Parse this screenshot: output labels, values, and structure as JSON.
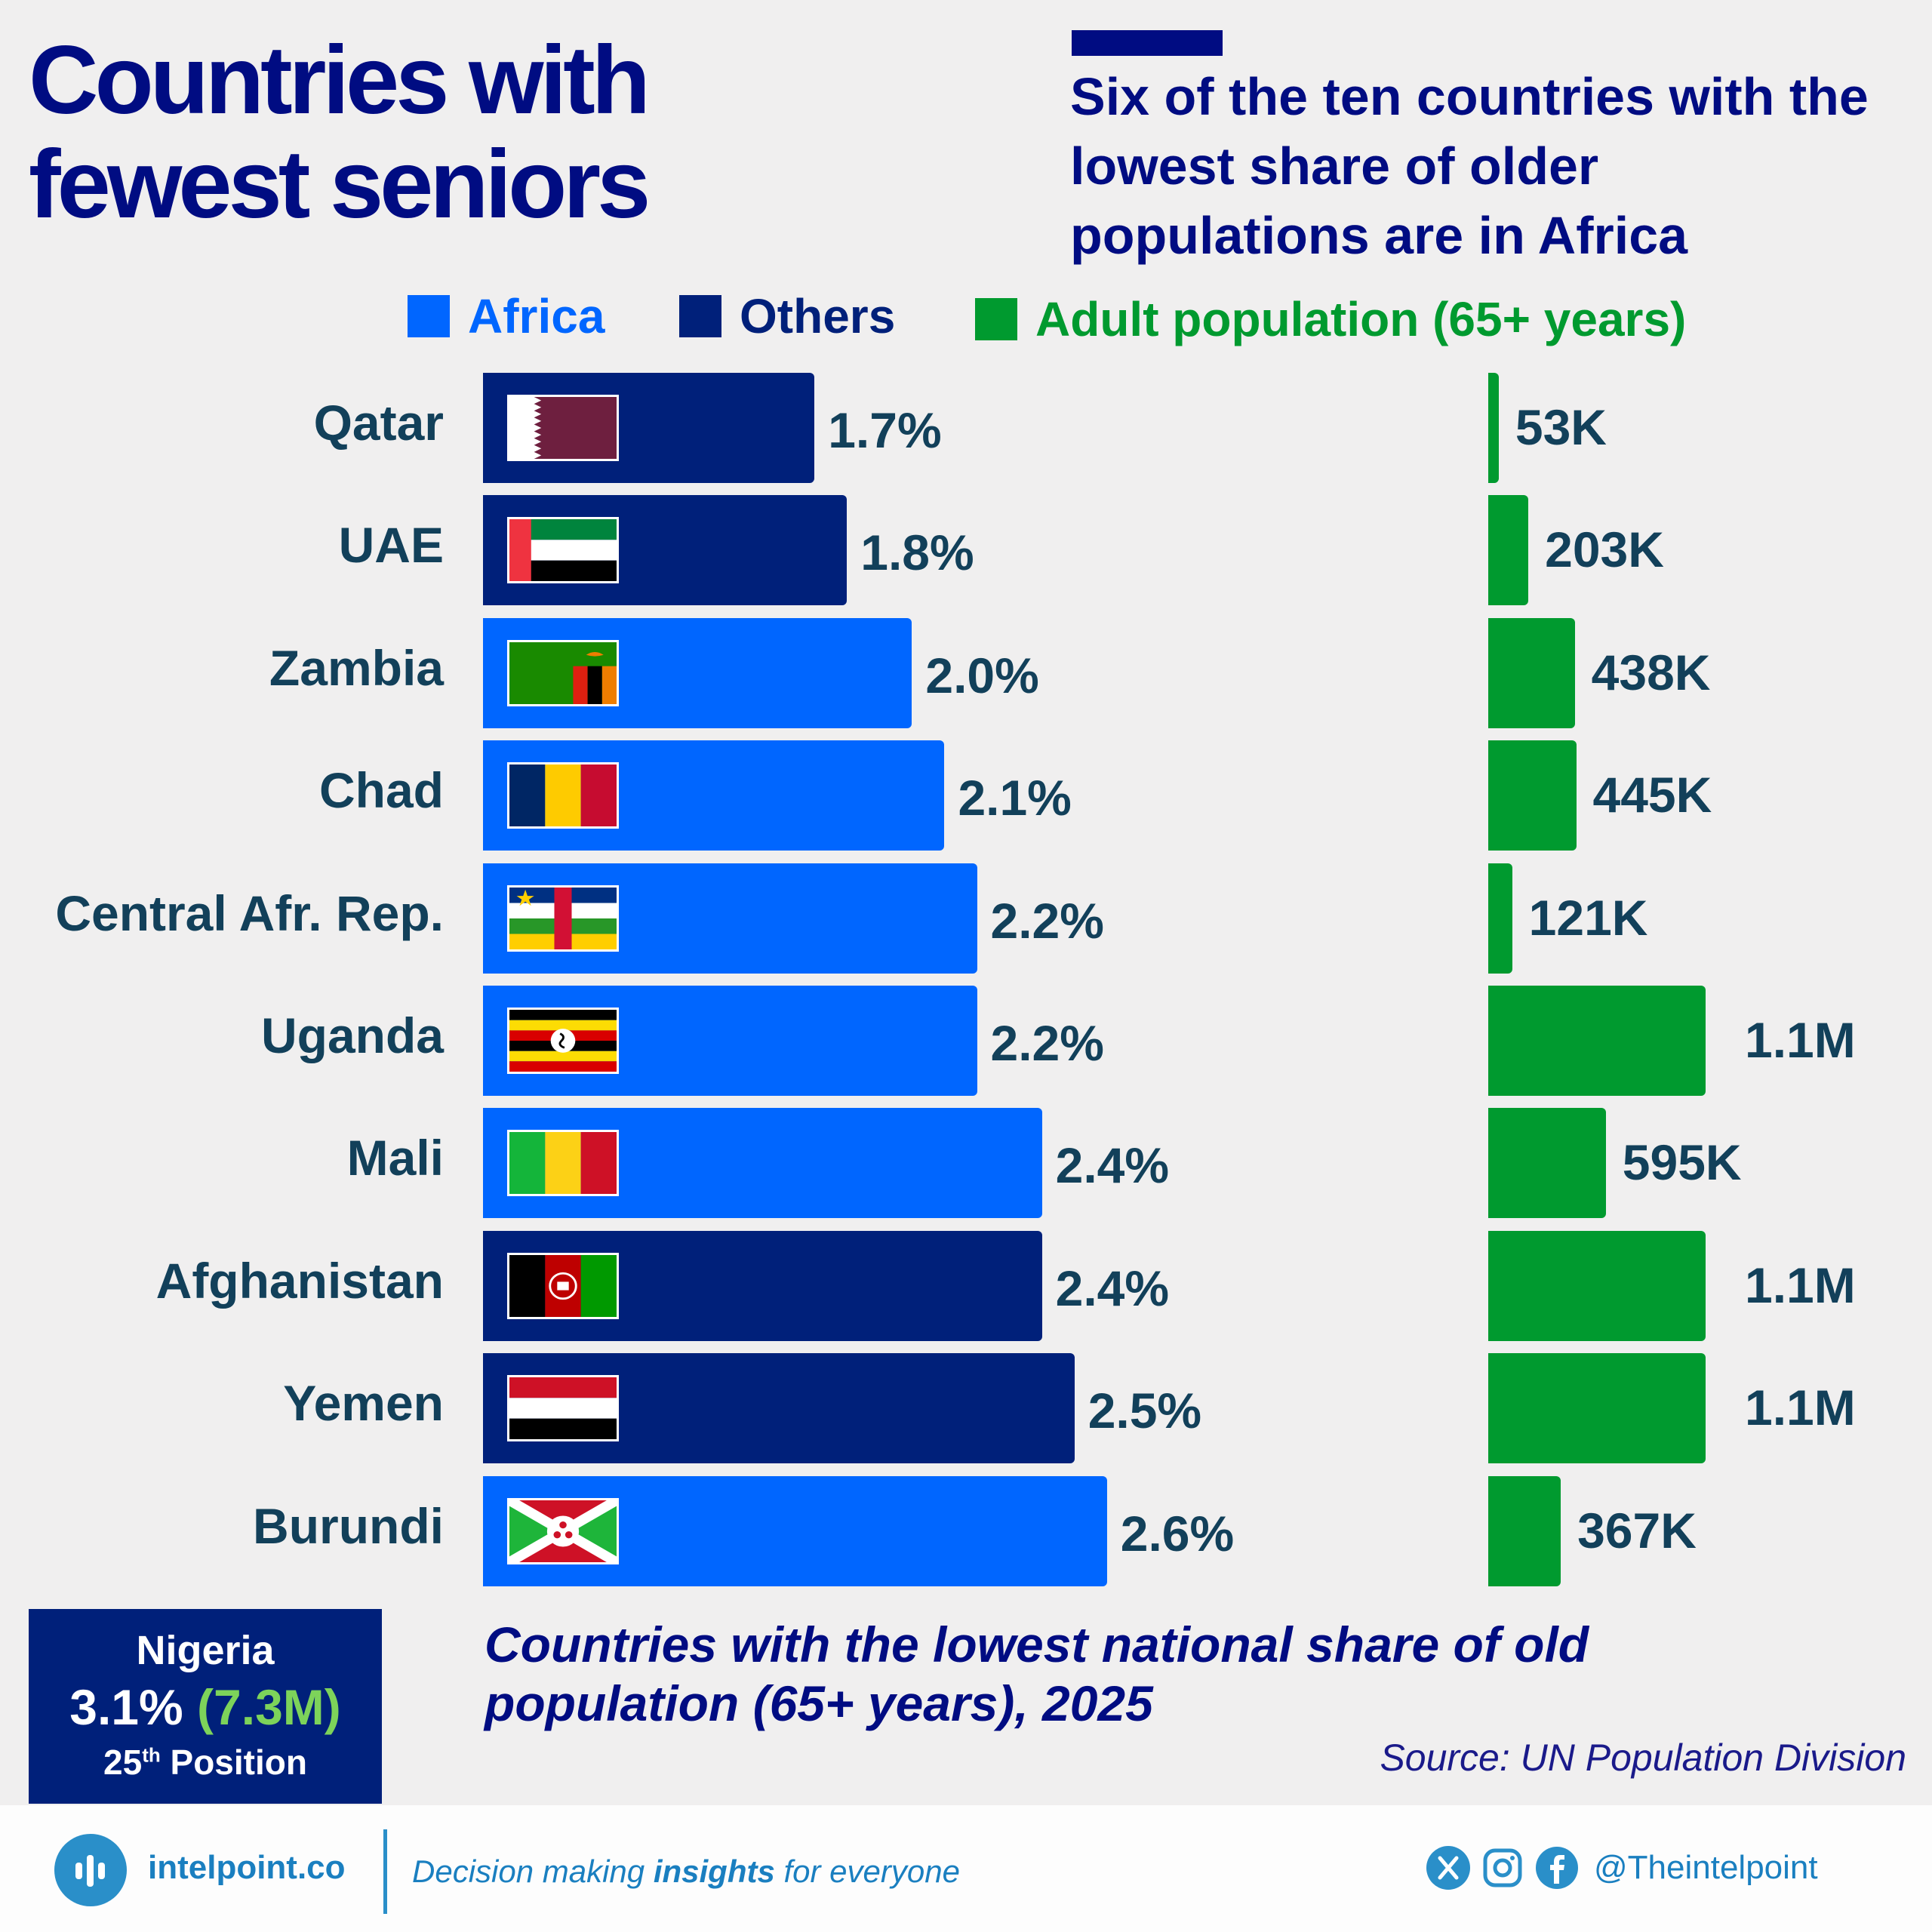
{
  "title_line1": "Countries with",
  "title_line2": "fewest seniors",
  "subtitle": "Six of the ten countries with the lowest share of older populations are in Africa",
  "legend": [
    {
      "label": "Africa",
      "color": "#0066ff"
    },
    {
      "label": "Others",
      "color": "#00207a"
    },
    {
      "label": "Adult population (65+ years)",
      "color": "#009a2f"
    }
  ],
  "chart_data": {
    "type": "bar",
    "orientation": "horizontal",
    "categories": [
      "Qatar",
      "UAE",
      "Zambia",
      "Chad",
      "Central Afr. Rep.",
      "Uganda",
      "Mali",
      "Afghanistan",
      "Yemen",
      "Burundi"
    ],
    "series": [
      {
        "name": "Share of population 65+ (%)",
        "values": [
          1.7,
          1.8,
          2.0,
          2.1,
          2.2,
          2.2,
          2.4,
          2.4,
          2.5,
          2.6
        ],
        "labels": [
          "1.7%",
          "1.8%",
          "2.0%",
          "2.1%",
          "2.2%",
          "2.2%",
          "2.4%",
          "2.4%",
          "2.5%",
          "2.6%"
        ]
      },
      {
        "name": "Adult population (65+ years)",
        "values": [
          53000,
          203000,
          438000,
          445000,
          121000,
          1100000,
          595000,
          1100000,
          1100000,
          367000
        ],
        "labels": [
          "53K",
          "203K",
          "438K",
          "445K",
          "121K",
          "1.1M",
          "595K",
          "1.1M",
          "1.1M",
          "367K"
        ]
      }
    ],
    "region": [
      "Others",
      "Others",
      "Africa",
      "Africa",
      "Africa",
      "Africa",
      "Africa",
      "Others",
      "Others",
      "Africa"
    ],
    "flags": [
      "qatar",
      "uae",
      "zambia",
      "chad",
      "car",
      "uganda",
      "mali",
      "afghanistan",
      "yemen",
      "burundi"
    ],
    "title": "Countries with the lowest national share of old population (65+ years), 2025"
  },
  "highlight": {
    "country": "Nigeria",
    "pct": "3.1%",
    "pop": "(7.3M)",
    "rank_num": "25",
    "rank_sup": "th",
    "rank_word": "Position"
  },
  "source": "Source: UN Population Division",
  "footer": {
    "brand": "intelpoint.co",
    "tagline_pre": "Decision making ",
    "tagline_bold": "insights",
    "tagline_post": " for everyone",
    "handle": "@Theintelpoint",
    "icons": [
      "x-icon",
      "instagram-icon",
      "facebook-icon"
    ]
  }
}
